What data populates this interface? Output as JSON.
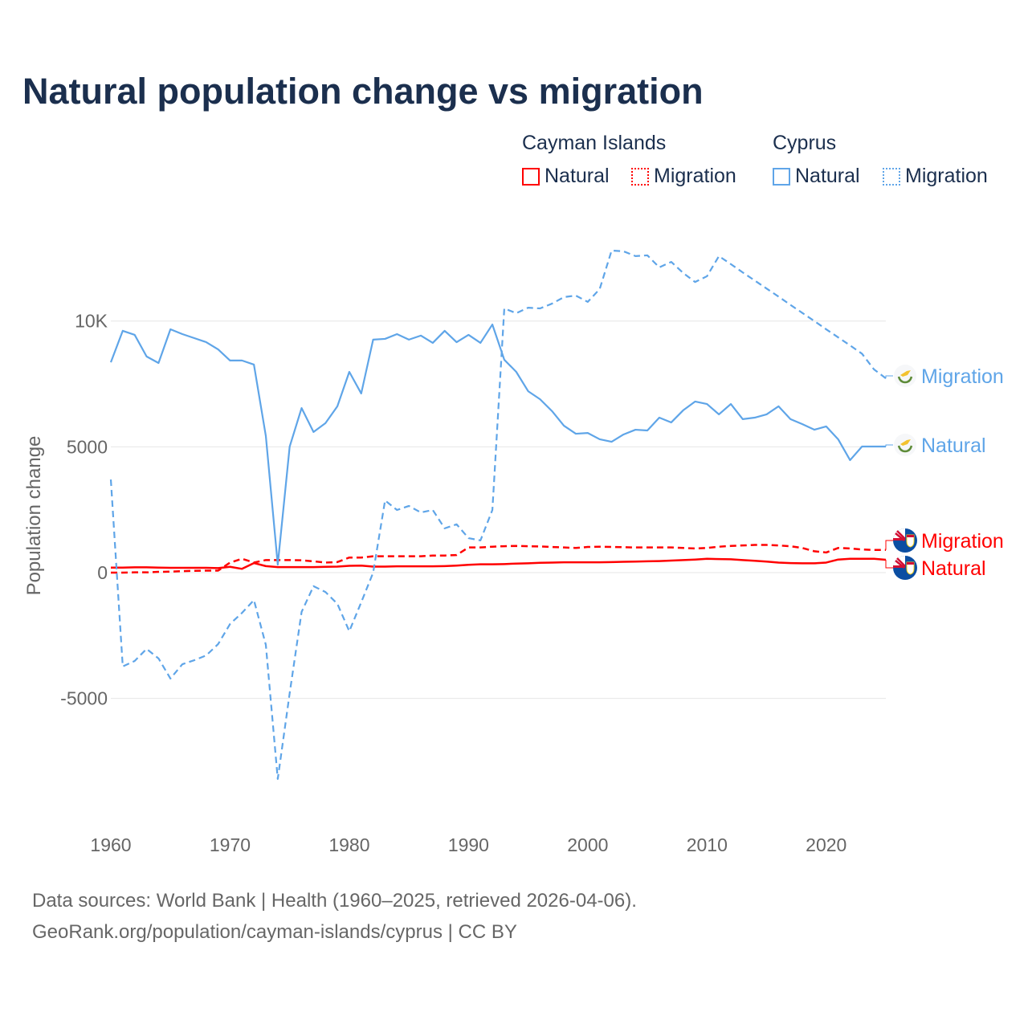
{
  "chart_data": {
    "type": "line",
    "title": "Natural population change vs migration",
    "ylabel": "Population change",
    "xlabel": "",
    "xlim": [
      1960,
      2025
    ],
    "ylim": [
      -8500,
      13500
    ],
    "grid": true,
    "x_ticks": [
      1960,
      1970,
      1980,
      1990,
      2000,
      2010,
      2020
    ],
    "x_tick_labels": [
      "1960",
      "1970",
      "1980",
      "1990",
      "2000",
      "2010",
      "2020"
    ],
    "y_ticks": [
      -5000,
      0,
      5000,
      10000
    ],
    "y_tick_labels": [
      "-5000",
      "0",
      "5000",
      "10K"
    ],
    "legend": {
      "placement": "top-right",
      "groups": [
        {
          "country": "Cayman Islands",
          "items": [
            "Natural",
            "Migration"
          ]
        },
        {
          "country": "Cyprus",
          "items": [
            "Natural",
            "Migration"
          ]
        }
      ]
    },
    "colors": {
      "Cayman Islands": "#ff0000",
      "Cyprus": "#5fa5e8",
      "title": "#1b2f4e"
    },
    "series": [
      {
        "name": "Natural",
        "country": "Cayman Islands",
        "style": "solid",
        "end_label": "Natural",
        "flag": "cayman-islands-flag-icon",
        "start": 1960,
        "values": [
          200,
          200,
          210,
          210,
          200,
          190,
          190,
          190,
          190,
          180,
          230,
          150,
          380,
          260,
          220,
          220,
          220,
          220,
          230,
          240,
          270,
          280,
          240,
          240,
          250,
          250,
          250,
          250,
          260,
          280,
          310,
          330,
          330,
          340,
          360,
          370,
          390,
          400,
          410,
          410,
          410,
          410,
          420,
          430,
          440,
          450,
          460,
          480,
          500,
          520,
          550,
          540,
          530,
          500,
          470,
          440,
          400,
          380,
          370,
          370,
          400,
          520,
          550,
          550,
          550,
          510
        ]
      },
      {
        "name": "Migration",
        "country": "Cayman Islands",
        "style": "dashed",
        "end_label": "Migration",
        "flag": "cayman-islands-flag-icon",
        "start": 1960,
        "values": [
          0,
          0,
          10,
          10,
          30,
          40,
          60,
          70,
          80,
          80,
          400,
          550,
          400,
          500,
          500,
          500,
          490,
          450,
          400,
          420,
          600,
          600,
          650,
          650,
          650,
          650,
          650,
          680,
          680,
          700,
          1000,
          1000,
          1030,
          1050,
          1060,
          1050,
          1040,
          1020,
          1000,
          980,
          1020,
          1030,
          1020,
          1010,
          1000,
          1000,
          1000,
          1000,
          980,
          960,
          980,
          1030,
          1060,
          1080,
          1100,
          1100,
          1080,
          1050,
          980,
          850,
          800,
          980,
          960,
          920,
          900,
          900
        ]
      },
      {
        "name": "Natural",
        "country": "Cyprus",
        "style": "solid",
        "end_label": "Natural",
        "flag": "cyprus-flag-icon",
        "start": 1960,
        "values": [
          8360,
          9610,
          9450,
          8590,
          8330,
          9670,
          9480,
          9320,
          9160,
          8870,
          8430,
          8430,
          8270,
          5430,
          320,
          5010,
          6540,
          5590,
          5940,
          6610,
          7980,
          7120,
          9260,
          9290,
          9480,
          9260,
          9420,
          9130,
          9610,
          9160,
          9450,
          9130,
          9860,
          8460,
          7980,
          7210,
          6890,
          6420,
          5840,
          5520,
          5550,
          5300,
          5200,
          5490,
          5680,
          5650,
          6160,
          5970,
          6450,
          6800,
          6700,
          6290,
          6700,
          6100,
          6160,
          6290,
          6610,
          6100,
          5900,
          5680,
          5810,
          5300,
          4470,
          5010,
          5010,
          5010
        ]
      },
      {
        "name": "Migration",
        "country": "Cyprus",
        "style": "dashed",
        "end_label": "Migration",
        "flag": "cyprus-flag-icon",
        "start": 1960,
        "values": [
          3700,
          -3730,
          -3510,
          -3030,
          -3410,
          -4210,
          -3640,
          -3480,
          -3290,
          -2840,
          -2040,
          -1600,
          -1090,
          -2870,
          -8200,
          -4790,
          -1560,
          -540,
          -770,
          -1240,
          -2330,
          -1180,
          0,
          2870,
          2490,
          2650,
          2390,
          2490,
          1760,
          1920,
          1370,
          1280,
          2490,
          10500,
          10310,
          10530,
          10500,
          10690,
          10950,
          11010,
          10760,
          11270,
          12800,
          12770,
          12580,
          12610,
          12130,
          12350,
          11910,
          11550,
          11780,
          12580,
          12260,
          11930,
          11610,
          11290,
          10970,
          10640,
          10320,
          10000,
          9670,
          9350,
          9030,
          8700,
          8080,
          7720
        ]
      }
    ]
  },
  "footer": {
    "line1": "Data sources: World Bank | Health (1960–2025, retrieved 2026-04-06).",
    "line2": "GeoRank.org/population/cayman-islands/cyprus | CC BY"
  }
}
